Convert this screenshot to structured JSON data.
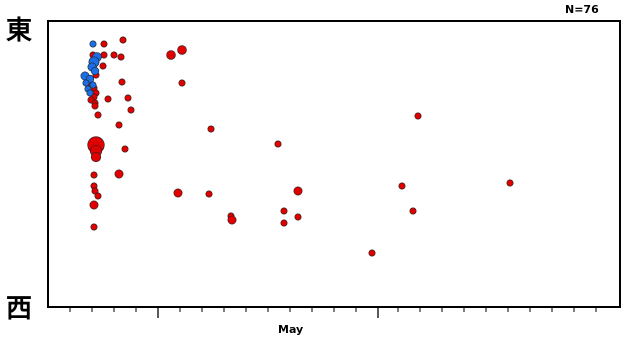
{
  "chart_data": {
    "type": "scatter",
    "title": "",
    "count_label": "N=76",
    "y_axis": {
      "top_label": "東",
      "bottom_label": "西"
    },
    "x_axis": {
      "month_label": "May"
    },
    "series": [
      {
        "color": "#e00000",
        "points": [
          {
            "x": 104,
            "y": 44,
            "s": 1
          },
          {
            "x": 123,
            "y": 40,
            "s": 1
          },
          {
            "x": 93,
            "y": 55,
            "s": 1
          },
          {
            "x": 104,
            "y": 55,
            "s": 1
          },
          {
            "x": 114,
            "y": 55,
            "s": 1
          },
          {
            "x": 121,
            "y": 57,
            "s": 1
          },
          {
            "x": 103,
            "y": 66,
            "s": 1
          },
          {
            "x": 171,
            "y": 55,
            "s": 1.4
          },
          {
            "x": 182,
            "y": 50,
            "s": 1.4
          },
          {
            "x": 96,
            "y": 75,
            "s": 1
          },
          {
            "x": 122,
            "y": 82,
            "s": 1
          },
          {
            "x": 182,
            "y": 83,
            "s": 1
          },
          {
            "x": 90,
            "y": 84,
            "s": 1
          },
          {
            "x": 94,
            "y": 88,
            "s": 1
          },
          {
            "x": 96,
            "y": 93,
            "s": 1
          },
          {
            "x": 94,
            "y": 97,
            "s": 1
          },
          {
            "x": 91,
            "y": 100,
            "s": 1
          },
          {
            "x": 95,
            "y": 103,
            "s": 1
          },
          {
            "x": 108,
            "y": 99,
            "s": 1
          },
          {
            "x": 128,
            "y": 98,
            "s": 1
          },
          {
            "x": 131,
            "y": 110,
            "s": 1
          },
          {
            "x": 95,
            "y": 106,
            "s": 1
          },
          {
            "x": 98,
            "y": 115,
            "s": 1
          },
          {
            "x": 119,
            "y": 125,
            "s": 1
          },
          {
            "x": 211,
            "y": 129,
            "s": 1
          },
          {
            "x": 418,
            "y": 116,
            "s": 1
          },
          {
            "x": 96,
            "y": 145,
            "s": 2.6
          },
          {
            "x": 96,
            "y": 151,
            "s": 1.8
          },
          {
            "x": 96,
            "y": 157,
            "s": 1.5
          },
          {
            "x": 125,
            "y": 149,
            "s": 1
          },
          {
            "x": 278,
            "y": 144,
            "s": 1
          },
          {
            "x": 94,
            "y": 175,
            "s": 1
          },
          {
            "x": 119,
            "y": 174,
            "s": 1.3
          },
          {
            "x": 94,
            "y": 186,
            "s": 1
          },
          {
            "x": 95,
            "y": 191,
            "s": 1
          },
          {
            "x": 98,
            "y": 196,
            "s": 1
          },
          {
            "x": 178,
            "y": 193,
            "s": 1.3
          },
          {
            "x": 209,
            "y": 194,
            "s": 1
          },
          {
            "x": 298,
            "y": 191,
            "s": 1.3
          },
          {
            "x": 402,
            "y": 186,
            "s": 1
          },
          {
            "x": 510,
            "y": 183,
            "s": 1
          },
          {
            "x": 94,
            "y": 205,
            "s": 1.3
          },
          {
            "x": 284,
            "y": 211,
            "s": 1
          },
          {
            "x": 298,
            "y": 217,
            "s": 1
          },
          {
            "x": 413,
            "y": 211,
            "s": 1
          },
          {
            "x": 231,
            "y": 216,
            "s": 1
          },
          {
            "x": 232,
            "y": 220,
            "s": 1.3
          },
          {
            "x": 284,
            "y": 223,
            "s": 1
          },
          {
            "x": 94,
            "y": 227,
            "s": 1
          },
          {
            "x": 372,
            "y": 253,
            "s": 1
          }
        ]
      },
      {
        "color": "#1a6ee6",
        "points": [
          {
            "x": 93,
            "y": 44,
            "s": 1
          },
          {
            "x": 97,
            "y": 57,
            "s": 1.4
          },
          {
            "x": 94,
            "y": 62,
            "s": 1.6
          },
          {
            "x": 92,
            "y": 67,
            "s": 1.3
          },
          {
            "x": 95,
            "y": 71,
            "s": 1.2
          },
          {
            "x": 85,
            "y": 76,
            "s": 1.3
          },
          {
            "x": 90,
            "y": 79,
            "s": 1.2
          },
          {
            "x": 86,
            "y": 83,
            "s": 1
          },
          {
            "x": 93,
            "y": 85,
            "s": 1
          },
          {
            "x": 88,
            "y": 89,
            "s": 1
          },
          {
            "x": 90,
            "y": 93,
            "s": 1
          }
        ]
      }
    ]
  }
}
